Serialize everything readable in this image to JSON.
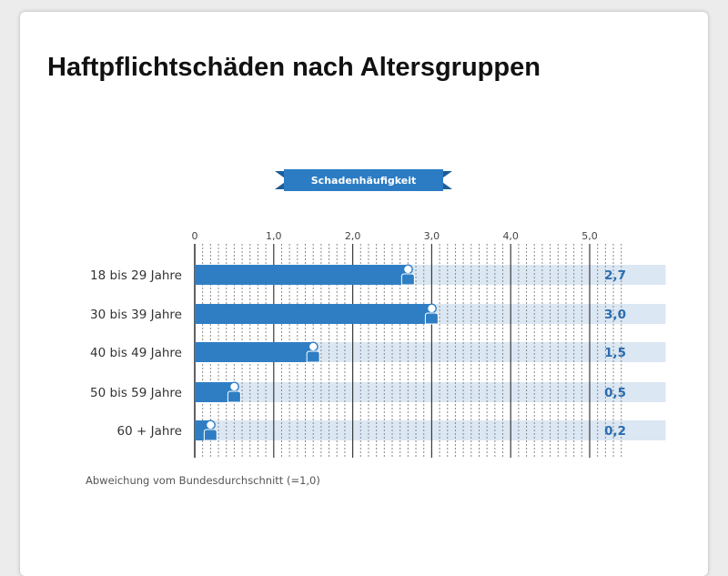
{
  "page": {
    "title": "Haftpflichtschäden nach Altersgruppen"
  },
  "chart_data": {
    "type": "bar",
    "orientation": "horizontal",
    "subtitle": "Schadenhäufigkeit",
    "categories": [
      "18 bis 29 Jahre",
      "30 bis 39 Jahre",
      "40 bis 49 Jahre",
      "50 bis 59 Jahre",
      "60 + Jahre"
    ],
    "values": [
      2.7,
      3.0,
      1.5,
      0.5,
      0.2
    ],
    "value_labels": [
      "2,7",
      "3,0",
      "1,5",
      "0,5",
      "0,2"
    ],
    "x_ticks": [
      "0",
      "1,0",
      "2,0",
      "3,0",
      "4,0",
      "5,0"
    ],
    "xlim": [
      0,
      5.5
    ],
    "footnote": "Abweichung vom Bundesdurchschnitt (=1,0)",
    "grid": true,
    "colors": {
      "bar": "#2f7ec4",
      "track": "#dbe7f3",
      "ribbon": "#2c7cc4",
      "value_text": "#2b6db0",
      "grid_major": "#3a3a3a",
      "grid_minor": "#8a8a8a"
    },
    "icons": [
      "person-icon"
    ]
  }
}
